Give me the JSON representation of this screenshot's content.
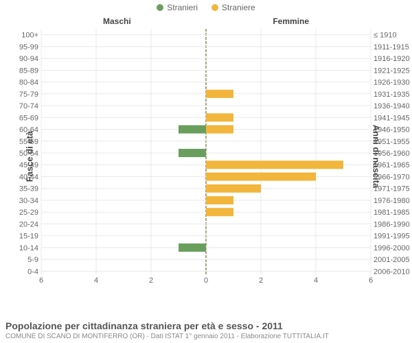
{
  "legend": {
    "male": {
      "label": "Stranieri",
      "color": "#6a9e5d"
    },
    "female": {
      "label": "Straniere",
      "color": "#f2b63c"
    }
  },
  "chart": {
    "type": "pyramid-bar",
    "panel_left_title": "Maschi",
    "panel_right_title": "Femmine",
    "y_left_title": "Fasce di età",
    "y_right_title": "Anni di nascita",
    "xlim": 6,
    "xticks_left": [
      6,
      4,
      2,
      0
    ],
    "xticks_right": [
      0,
      2,
      4,
      6
    ],
    "grid_color": "#e8e8e8",
    "midline_color": "#8a8a5a",
    "background_color": "#ffffff",
    "bar_width_ratio": 0.7,
    "label_fontsize": 11,
    "panel_title_fontsize": 12,
    "rows": [
      {
        "age": "100+",
        "birth": "≤ 1910",
        "male": 0,
        "female": 0
      },
      {
        "age": "95-99",
        "birth": "1911-1915",
        "male": 0,
        "female": 0
      },
      {
        "age": "90-94",
        "birth": "1916-1920",
        "male": 0,
        "female": 0
      },
      {
        "age": "85-89",
        "birth": "1921-1925",
        "male": 0,
        "female": 0
      },
      {
        "age": "80-84",
        "birth": "1926-1930",
        "male": 0,
        "female": 0
      },
      {
        "age": "75-79",
        "birth": "1931-1935",
        "male": 0,
        "female": 1
      },
      {
        "age": "70-74",
        "birth": "1936-1940",
        "male": 0,
        "female": 0
      },
      {
        "age": "65-69",
        "birth": "1941-1945",
        "male": 0,
        "female": 1
      },
      {
        "age": "60-64",
        "birth": "1946-1950",
        "male": 1,
        "female": 1
      },
      {
        "age": "55-59",
        "birth": "1951-1955",
        "male": 0,
        "female": 0
      },
      {
        "age": "50-54",
        "birth": "1956-1960",
        "male": 1,
        "female": 0
      },
      {
        "age": "45-49",
        "birth": "1961-1965",
        "male": 0,
        "female": 5
      },
      {
        "age": "40-44",
        "birth": "1966-1970",
        "male": 0,
        "female": 4
      },
      {
        "age": "35-39",
        "birth": "1971-1975",
        "male": 0,
        "female": 2
      },
      {
        "age": "30-34",
        "birth": "1976-1980",
        "male": 0,
        "female": 1
      },
      {
        "age": "25-29",
        "birth": "1981-1985",
        "male": 0,
        "female": 1
      },
      {
        "age": "20-24",
        "birth": "1986-1990",
        "male": 0,
        "female": 0
      },
      {
        "age": "15-19",
        "birth": "1991-1995",
        "male": 0,
        "female": 0
      },
      {
        "age": "10-14",
        "birth": "1996-2000",
        "male": 1,
        "female": 0
      },
      {
        "age": "5-9",
        "birth": "2001-2005",
        "male": 0,
        "female": 0
      },
      {
        "age": "0-4",
        "birth": "2006-2010",
        "male": 0,
        "female": 0
      }
    ]
  },
  "caption": {
    "title": "Popolazione per cittadinanza straniera per età e sesso - 2011",
    "subtitle": "COMUNE DI SCANO DI MONTIFERRO (OR) - Dati ISTAT 1° gennaio 2011 - Elaborazione TUTTITALIA.IT"
  }
}
